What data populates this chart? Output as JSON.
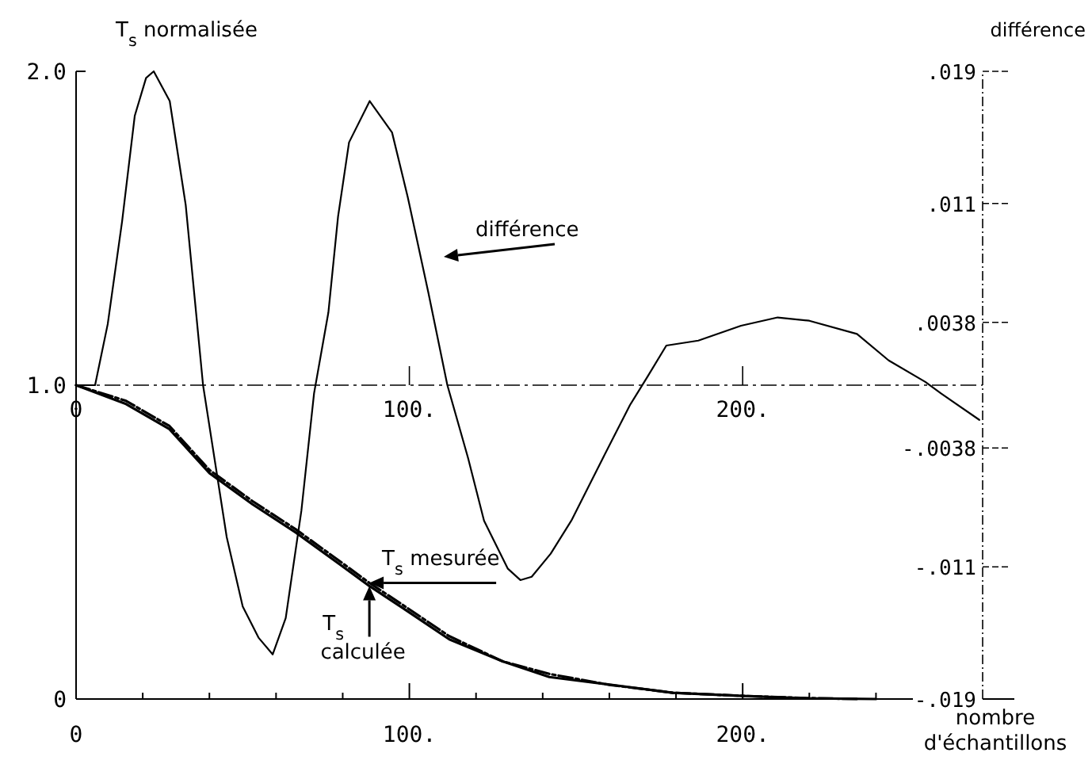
{
  "chart_data": {
    "type": "line",
    "ylabel": "T$_{s}$ normalisée",
    "y2label": "différence",
    "xlabel": "nombre d'échantillons",
    "xlim": [
      0,
      272
    ],
    "ylim": [
      0,
      2
    ],
    "y2lim": [
      -0.019,
      0.019
    ],
    "x2lim": [
      0,
      272
    ],
    "xticks": [
      {
        "value": 0,
        "label": "0"
      },
      {
        "value": 20,
        "label": null
      },
      {
        "value": 40,
        "label": null
      },
      {
        "value": 60,
        "label": null
      },
      {
        "value": 80,
        "label": null
      },
      {
        "value": 100,
        "label": "100."
      },
      {
        "value": 120,
        "label": null
      },
      {
        "value": 140,
        "label": null
      },
      {
        "value": 160,
        "label": null
      },
      {
        "value": 180,
        "label": null
      },
      {
        "value": 200,
        "label": "200."
      },
      {
        "value": 220,
        "label": null
      },
      {
        "value": 240,
        "label": null
      },
      {
        "value": 260,
        "label": null
      }
    ],
    "x2ticks": [
      {
        "value": 0,
        "label": "0"
      },
      {
        "value": 100,
        "label": "100."
      },
      {
        "value": 200,
        "label": "200."
      }
    ],
    "yticks": [
      {
        "value": 0,
        "label": "0"
      },
      {
        "value": 1,
        "label": "1.0"
      },
      {
        "value": 2,
        "label": "2.0"
      }
    ],
    "y2ticks": [
      {
        "value": 0.019,
        "label": ".019"
      },
      {
        "value": 0.011,
        "label": ".011"
      },
      {
        "value": 0.0038,
        "label": ".0038"
      },
      {
        "value": -0.0038,
        "label": "-.0038"
      },
      {
        "value": -0.011,
        "label": "-.011"
      },
      {
        "value": -0.019,
        "label": "-.019"
      }
    ],
    "marker": "none",
    "series": [
      {
        "color": "#000000",
        "axis": "y2",
        "line_style": "solid",
        "x": [
          0,
          5.7,
          9.5,
          13.8,
          17.6,
          21,
          23.3,
          28.1,
          32.9,
          38.1,
          45.2,
          50,
          54.8,
          59,
          62.9,
          67.6,
          71.4,
          75.7,
          78.6,
          81.9,
          88.1,
          94.8,
          99.5,
          105.7,
          111.4,
          117.6,
          122.4,
          129.5,
          133.3,
          136.7,
          142.4,
          148.6,
          158.1,
          166.2,
          171.4,
          177.1,
          186.7,
          199.5,
          210.5,
          220,
          234.3,
          243.8,
          254.8,
          259.5,
          271
        ],
        "values": [
          0,
          0,
          0.0037,
          0.0099,
          0.0163,
          0.0186,
          0.019,
          0.0172,
          0.0109,
          0,
          -0.0092,
          -0.0134,
          -0.0153,
          -0.0163,
          -0.0141,
          -0.0076,
          -0.0005,
          0.0044,
          0.0102,
          0.0147,
          0.0172,
          0.0153,
          0.0114,
          0.0056,
          0,
          -0.0044,
          -0.0082,
          -0.0111,
          -0.0118,
          -0.0116,
          -0.0102,
          -0.0082,
          -0.0044,
          -0.0012,
          0.0005,
          0.0024,
          0.0027,
          0.0036,
          0.0041,
          0.0039,
          0.0031,
          0.0015,
          0.0002,
          -0.0005,
          -0.0021
        ]
      },
      {
        "color": "#000000",
        "line_style": "dashed",
        "x": [
          0,
          15,
          28,
          40,
          53,
          66,
          79,
          88,
          98,
          112,
          128,
          142,
          160,
          179,
          200,
          219,
          235
        ],
        "values": [
          1,
          0.95,
          0.87,
          0.73,
          0.63,
          0.54,
          0.44,
          0.37,
          0.3,
          0.2,
          0.12,
          0.08,
          0.045,
          0.02,
          0.01,
          0.003,
          0
        ]
      },
      {
        "color": "#000000",
        "line_style": "solid",
        "x": [
          0,
          15,
          28,
          40,
          53,
          66,
          79,
          88,
          98,
          112,
          128,
          142,
          160,
          179,
          200,
          219,
          240
        ],
        "values": [
          1,
          0.94,
          0.86,
          0.72,
          0.62,
          0.53,
          0.43,
          0.36,
          0.29,
          0.19,
          0.12,
          0.07,
          0.046,
          0.02,
          0.01,
          0.002,
          0
        ]
      }
    ],
    "annotations": [
      "différence",
      {
        "text": "T$_{s}$ mesurée",
        "x": 88,
        "y": 0.37
      },
      {
        "text": "T$_{s}$ calculée",
        "x": 88,
        "y": 0.36
      }
    ]
  }
}
